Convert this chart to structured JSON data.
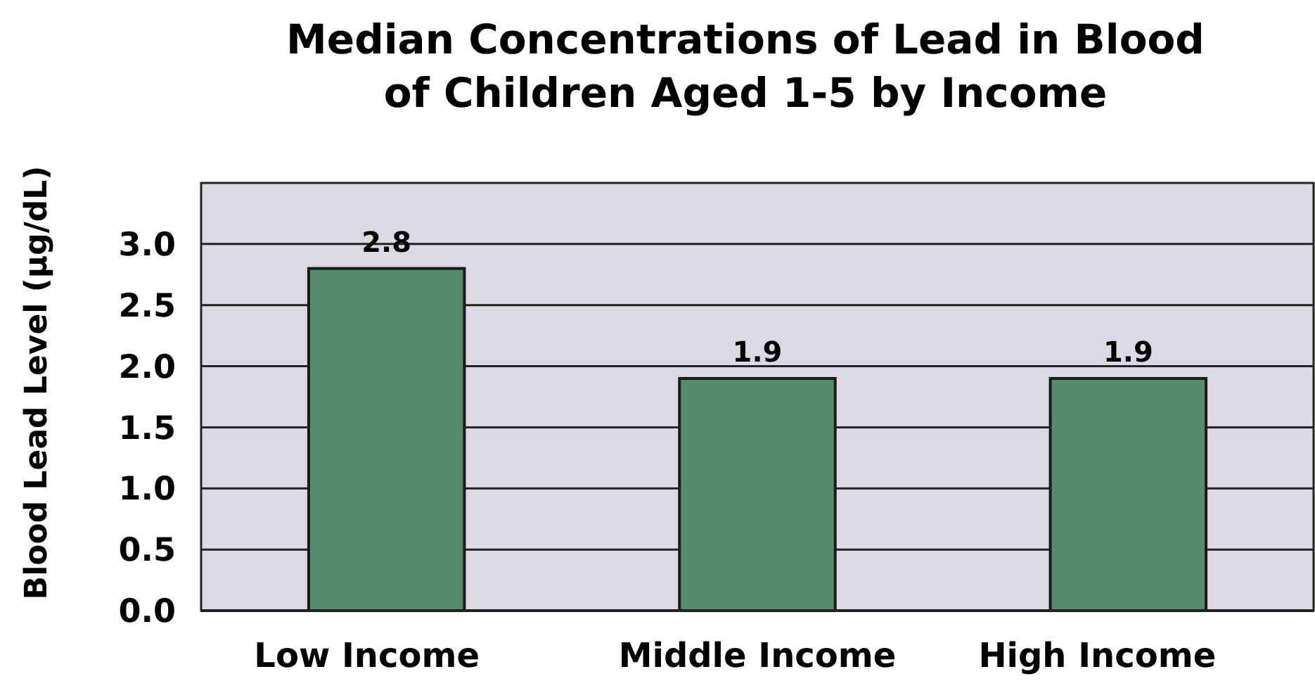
{
  "chart_data": {
    "type": "bar",
    "title": "Median Concentrations of Lead in Blood of Children Aged 1-5 by Income",
    "ylabel": "Blood Lead Level (µg/dL)",
    "categories": [
      "Low Income",
      "Middle Income",
      "High Income"
    ],
    "values": [
      2.8,
      1.9,
      1.9
    ],
    "color": "#558b6b",
    "data_labels": true,
    "ylim": [
      0,
      3.5
    ],
    "yticks": [
      {
        "value": 0,
        "label": "0.0"
      },
      {
        "value": 0.5,
        "label": "0.5"
      },
      {
        "value": 1,
        "label": "1.0"
      },
      {
        "value": 1.5,
        "label": "1.5"
      },
      {
        "value": 2,
        "label": "2.0"
      },
      {
        "value": 2.5,
        "label": "2.5"
      },
      {
        "value": 3,
        "label": "3.0"
      }
    ],
    "grid": "y"
  }
}
